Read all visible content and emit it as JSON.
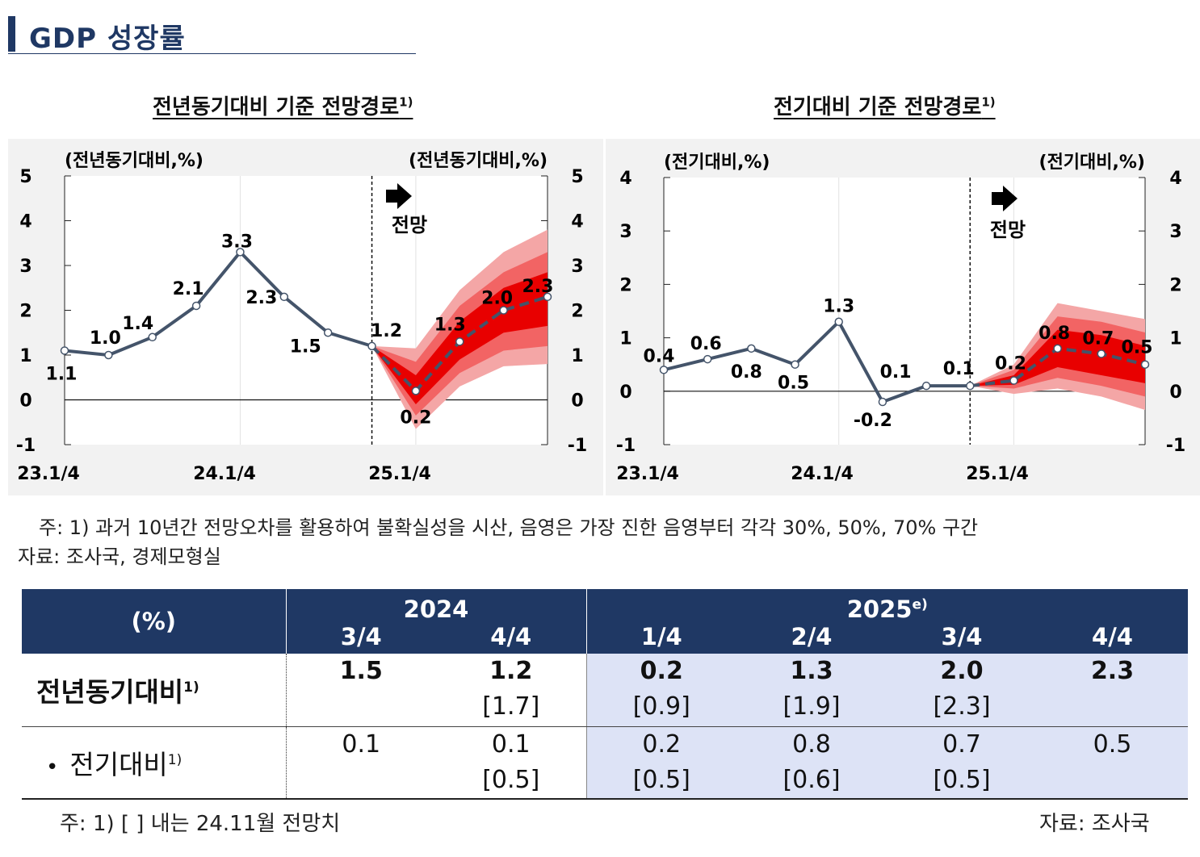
{
  "header": {
    "title": "GDP 성장률"
  },
  "charts": {
    "left_title": "전년동기대비 기준 전망경로",
    "right_title": "전기대비 기준 전망경로",
    "title_note": "1)",
    "forecast_label": "전망"
  },
  "chart_data": [
    {
      "type": "line",
      "title": "전년동기대비 기준 전망경로",
      "ylabel_left": "(전년동기대비,%)",
      "ylabel_right": "(전년동기대비,%)",
      "ylim": [
        -1,
        5
      ],
      "yticks": [
        "-1",
        "0",
        "1",
        "2",
        "3",
        "4",
        "5"
      ],
      "xtick_labels": [
        "23.1/4",
        "24.1/4",
        "25.1/4"
      ],
      "x": [
        0,
        1,
        2,
        3,
        4,
        5,
        6,
        7,
        8,
        9,
        10,
        11
      ],
      "values": [
        1.1,
        1.0,
        1.4,
        2.1,
        3.3,
        2.3,
        1.5,
        1.2,
        0.2,
        1.3,
        2.0,
        2.3
      ],
      "labels": [
        "1.1",
        "1.0",
        "1.4",
        "2.1",
        "3.3",
        "2.3",
        "1.5",
        "1.2",
        "0.2",
        "1.3",
        "2.0",
        "2.3"
      ],
      "forecast_start_index": 7,
      "fan_bands": {
        "x": [
          7,
          8,
          9,
          10,
          11
        ],
        "band70": {
          "low": [
            1.2,
            -0.65,
            0.3,
            0.75,
            0.8
          ],
          "high": [
            1.2,
            1.15,
            2.45,
            3.3,
            3.8
          ]
        },
        "band50": {
          "low": [
            1.2,
            -0.35,
            0.6,
            1.1,
            1.2
          ],
          "high": [
            1.2,
            0.85,
            2.1,
            2.85,
            3.3
          ]
        },
        "band30": {
          "low": [
            1.2,
            -0.1,
            0.9,
            1.5,
            1.65
          ],
          "high": [
            1.2,
            0.55,
            1.75,
            2.5,
            2.85
          ]
        }
      }
    },
    {
      "type": "line",
      "title": "전기대비 기준 전망경로",
      "ylabel_left": "(전기대비,%)",
      "ylabel_right": "(전기대비,%)",
      "ylim": [
        -1,
        4
      ],
      "yticks": [
        "-1",
        "0",
        "1",
        "2",
        "3",
        "4"
      ],
      "xtick_labels": [
        "23.1/4",
        "24.1/4",
        "25.1/4"
      ],
      "x": [
        0,
        1,
        2,
        3,
        4,
        5,
        6,
        7,
        8,
        9,
        10,
        11
      ],
      "values": [
        0.4,
        0.6,
        0.8,
        0.5,
        1.3,
        -0.2,
        0.1,
        0.1,
        0.2,
        0.8,
        0.7,
        0.5
      ],
      "labels": [
        "0.4",
        "0.6",
        "0.8",
        "0.5",
        "1.3",
        "-0.2",
        "0.1",
        "0.1",
        "0.2",
        "0.8",
        "0.7",
        "0.5"
      ],
      "forecast_start_index": 7,
      "fan_bands": {
        "x": [
          7,
          8,
          9,
          10,
          11
        ],
        "band70": {
          "low": [
            0.1,
            -0.05,
            0.05,
            -0.1,
            -0.35
          ],
          "high": [
            0.1,
            0.5,
            1.65,
            1.5,
            1.35
          ]
        },
        "band50": {
          "low": [
            0.1,
            0.05,
            0.25,
            0.1,
            -0.1
          ],
          "high": [
            0.1,
            0.4,
            1.4,
            1.3,
            1.1
          ]
        },
        "band30": {
          "low": [
            0.1,
            0.12,
            0.45,
            0.3,
            0.15
          ],
          "high": [
            0.1,
            0.3,
            1.15,
            1.05,
            0.85
          ]
        }
      }
    }
  ],
  "notes": {
    "note1": "주: 1) 과거 10년간 전망오차를 활용하여 불확실성을 시산, 음영은 가장 진한 음영부터 각각 30%, 50%, 70% 구간",
    "source": "자료: 조사국, 경제모형실"
  },
  "table": {
    "unit": "(%)",
    "year_2024": "2024",
    "year_2025": "2025",
    "year_2025_sup": "e)",
    "quarters": [
      "3/4",
      "4/4",
      "1/4",
      "2/4",
      "3/4",
      "4/4"
    ],
    "row1_label": "전년동기대비",
    "row2_label": "전기대비",
    "label_sup": "1)",
    "bullet": "•",
    "row1": [
      {
        "value": "1.5",
        "prev": ""
      },
      {
        "value": "1.2",
        "prev": "[1.7]"
      },
      {
        "value": "0.2",
        "prev": "[0.9]"
      },
      {
        "value": "1.3",
        "prev": "[1.9]"
      },
      {
        "value": "2.0",
        "prev": "[2.3]"
      },
      {
        "value": "2.3",
        "prev": ""
      }
    ],
    "row2": [
      {
        "value": "0.1",
        "prev": ""
      },
      {
        "value": "0.1",
        "prev": "[0.5]"
      },
      {
        "value": "0.2",
        "prev": "[0.5]"
      },
      {
        "value": "0.8",
        "prev": "[0.6]"
      },
      {
        "value": "0.7",
        "prev": "[0.5]"
      },
      {
        "value": "0.5",
        "prev": ""
      }
    ]
  },
  "footer": {
    "note": "주: 1) [   ] 내는 24.11월 전망치",
    "source": "자료: 조사국"
  },
  "colors": {
    "navy": "#1f3864",
    "line": "#44546a",
    "band70": "#f4a6a6",
    "band50": "#f26464",
    "band30": "#e80000",
    "shade": "#dde3f6"
  }
}
